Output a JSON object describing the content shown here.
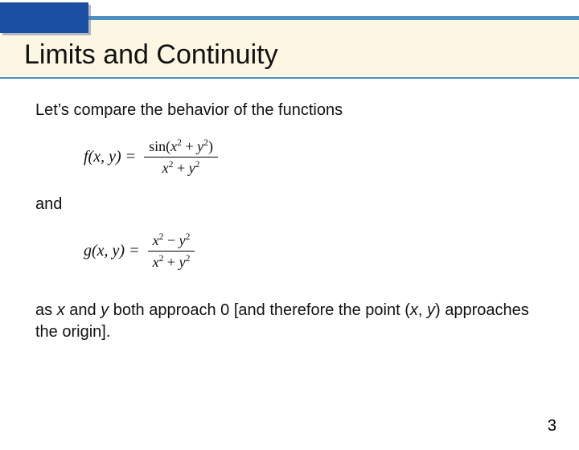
{
  "colors": {
    "banner_bg": "#fdf6e3",
    "banner_border": "#4a90c0",
    "blue_box": "#1a4fa3",
    "text": "#111111",
    "page_bg": "#ffffff"
  },
  "title": "Limits and Continuity",
  "body": {
    "intro": "Let’s compare the behavior of the functions",
    "f_lhs": "f(x, y) =",
    "f_num": "sin(x² + y²)",
    "f_den": "x² + y²",
    "connector": "and",
    "g_lhs": "g(x, y) =",
    "g_num": "x² − y²",
    "g_den": "x² + y²",
    "conclusion_pre": "as ",
    "x": "x",
    "and_word": " and ",
    "y": "y",
    "mid": " both approach 0 [and therefore the point (",
    "comma": ", ",
    "tail": ") approaches the origin]."
  },
  "page_number": "3"
}
